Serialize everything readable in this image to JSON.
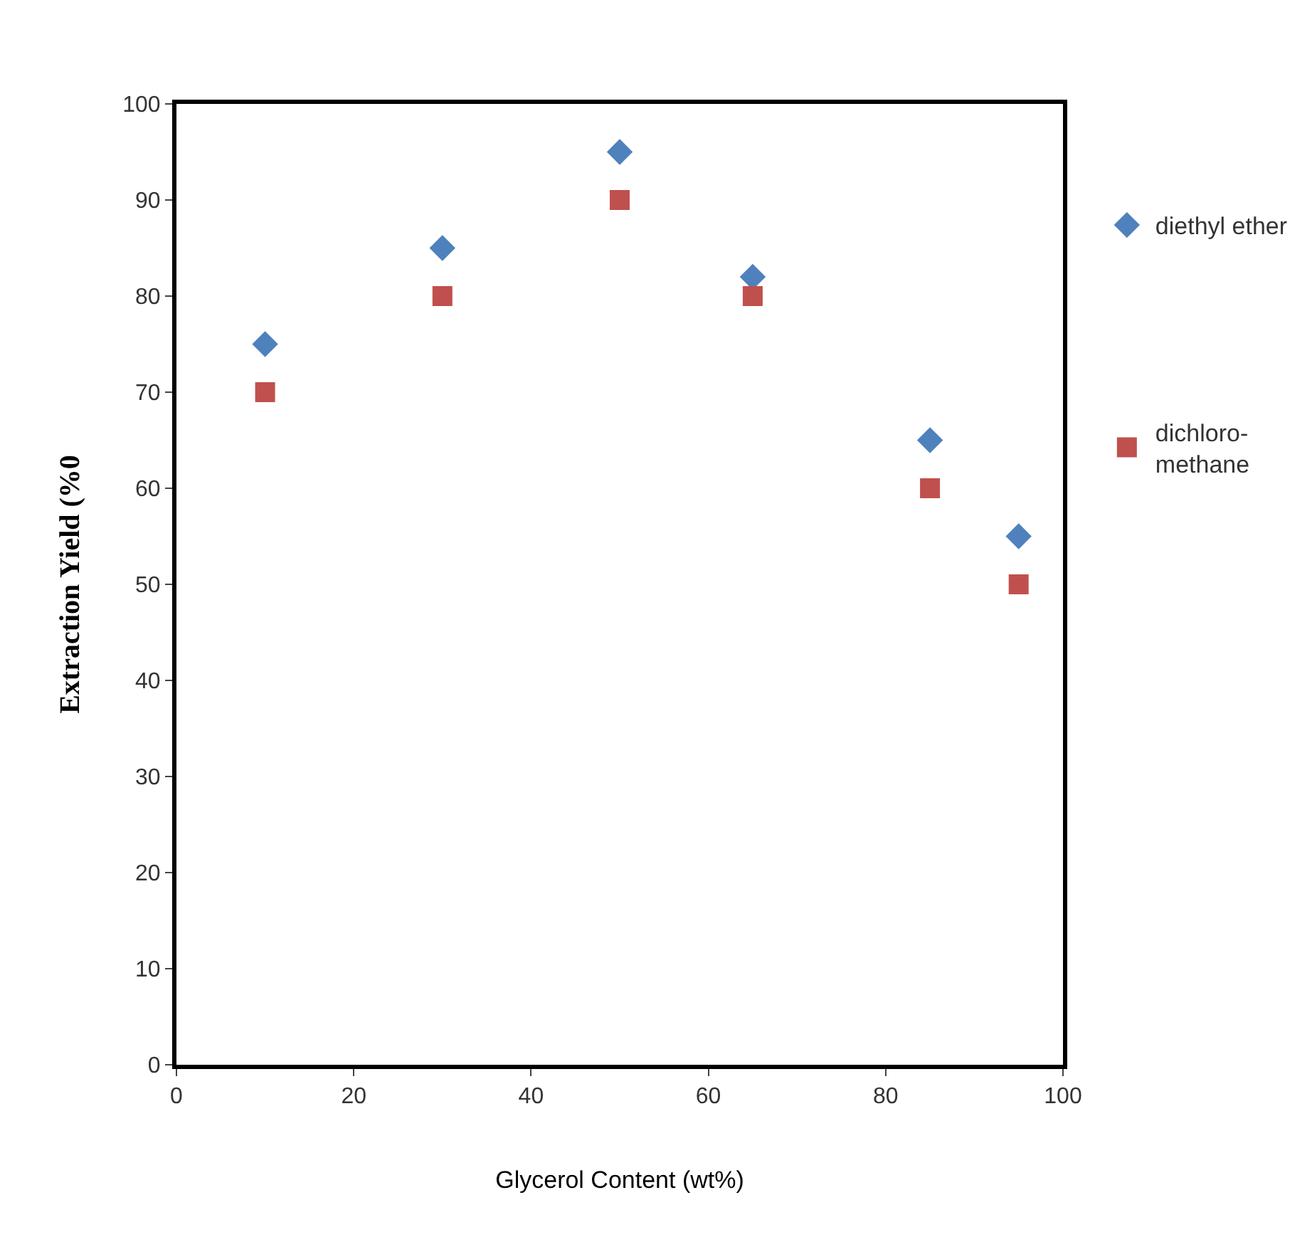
{
  "chart_data": {
    "type": "scatter",
    "xlabel": "Glycerol Content (wt%)",
    "ylabel": "Extraction Yield (%0",
    "x": [
      10,
      30,
      50,
      65,
      85,
      95
    ],
    "series": [
      {
        "name": "diethyl ether",
        "color": "#4f81bd",
        "marker": "diamond",
        "values": [
          75,
          85,
          95,
          82,
          65,
          55
        ]
      },
      {
        "name": "dichloro-methane",
        "color": "#c0504d",
        "marker": "square",
        "values": [
          70,
          80,
          90,
          80,
          60,
          50
        ]
      }
    ],
    "xlim": [
      0,
      100
    ],
    "xticks": [
      0,
      20,
      40,
      60,
      80,
      100
    ],
    "ylim": [
      0,
      100
    ],
    "yticks": [
      0,
      10,
      20,
      30,
      40,
      50,
      60,
      70,
      80,
      90,
      100
    ],
    "legend": "right"
  }
}
